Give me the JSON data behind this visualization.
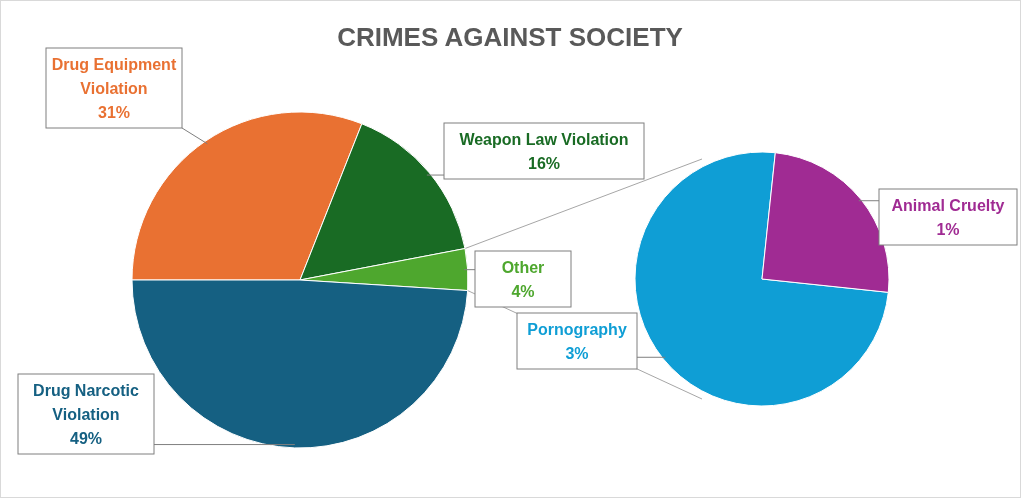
{
  "chart_data": [
    {
      "type": "pie",
      "title": "CRIMES AGAINST SOCIETY",
      "categories": [
        "Drug Equipment Violation",
        "Weapon Law Violation",
        "Other",
        "Drug Narcotic Violation"
      ],
      "values": [
        31,
        16,
        4,
        49
      ],
      "value_labels": [
        "31%",
        "16%",
        "4%",
        "49%"
      ],
      "colors": [
        "#e97132",
        "#196b24",
        "#4ea72e",
        "#156082"
      ]
    },
    {
      "type": "pie",
      "categories": [
        "Pornography",
        "Animal Cruelty"
      ],
      "values": [
        3,
        1
      ],
      "value_labels": [
        "3%",
        "1%"
      ],
      "colors": [
        "#0f9ed5",
        "#a02b93"
      ]
    }
  ]
}
